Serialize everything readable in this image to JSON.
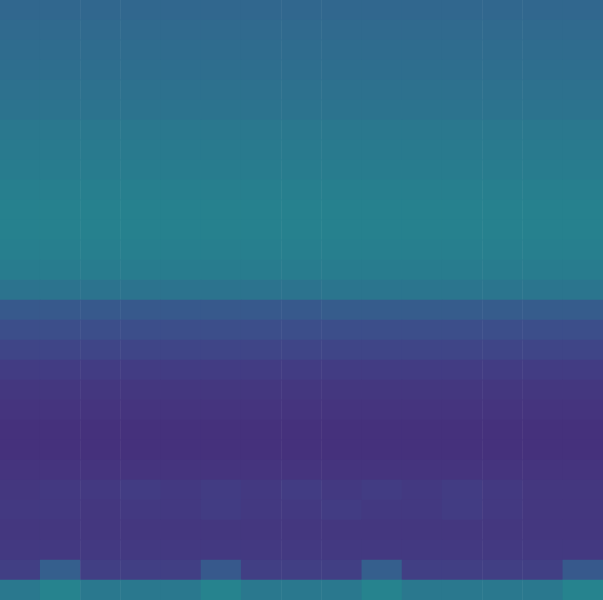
{
  "chart_data": {
    "type": "heatmap",
    "color": "viridis",
    "tick_labels": false,
    "color_range": [
      0,
      1
    ],
    "cells": [
      [
        0.33,
        0.33,
        0.33,
        0.33,
        0.33,
        0.33,
        0.33,
        0.33,
        0.33,
        0.33,
        0.33,
        0.33,
        0.33,
        0.33,
        0.33
      ],
      [
        0.34,
        0.34,
        0.34,
        0.34,
        0.34,
        0.34,
        0.34,
        0.34,
        0.34,
        0.34,
        0.34,
        0.34,
        0.34,
        0.34,
        0.34
      ],
      [
        0.35,
        0.35,
        0.35,
        0.35,
        0.35,
        0.35,
        0.35,
        0.35,
        0.35,
        0.35,
        0.35,
        0.35,
        0.35,
        0.35,
        0.35
      ],
      [
        0.36,
        0.36,
        0.36,
        0.36,
        0.36,
        0.36,
        0.36,
        0.36,
        0.36,
        0.36,
        0.36,
        0.36,
        0.36,
        0.36,
        0.36
      ],
      [
        0.37,
        0.37,
        0.37,
        0.37,
        0.37,
        0.37,
        0.37,
        0.37,
        0.37,
        0.37,
        0.37,
        0.37,
        0.37,
        0.37,
        0.37
      ],
      [
        0.38,
        0.38,
        0.38,
        0.38,
        0.38,
        0.38,
        0.38,
        0.38,
        0.38,
        0.38,
        0.38,
        0.38,
        0.38,
        0.38,
        0.38
      ],
      [
        0.4,
        0.4,
        0.4,
        0.4,
        0.4,
        0.4,
        0.4,
        0.4,
        0.4,
        0.4,
        0.4,
        0.4,
        0.4,
        0.4,
        0.4
      ],
      [
        0.41,
        0.41,
        0.41,
        0.41,
        0.41,
        0.41,
        0.41,
        0.41,
        0.41,
        0.41,
        0.41,
        0.41,
        0.41,
        0.41,
        0.41
      ],
      [
        0.42,
        0.42,
        0.42,
        0.42,
        0.42,
        0.42,
        0.42,
        0.42,
        0.42,
        0.42,
        0.42,
        0.42,
        0.42,
        0.42,
        0.42
      ],
      [
        0.43,
        0.43,
        0.43,
        0.43,
        0.43,
        0.43,
        0.43,
        0.43,
        0.43,
        0.43,
        0.43,
        0.43,
        0.43,
        0.43,
        0.43
      ],
      [
        0.44,
        0.44,
        0.44,
        0.44,
        0.44,
        0.44,
        0.44,
        0.44,
        0.44,
        0.44,
        0.44,
        0.44,
        0.44,
        0.44,
        0.44
      ],
      [
        0.44,
        0.44,
        0.44,
        0.44,
        0.44,
        0.44,
        0.44,
        0.44,
        0.44,
        0.44,
        0.44,
        0.44,
        0.44,
        0.44,
        0.44
      ],
      [
        0.43,
        0.43,
        0.43,
        0.43,
        0.43,
        0.43,
        0.43,
        0.43,
        0.43,
        0.43,
        0.43,
        0.43,
        0.43,
        0.43,
        0.43
      ],
      [
        0.42,
        0.42,
        0.42,
        0.42,
        0.42,
        0.42,
        0.42,
        0.42,
        0.42,
        0.42,
        0.42,
        0.42,
        0.42,
        0.42,
        0.42
      ],
      [
        0.38,
        0.38,
        0.38,
        0.38,
        0.38,
        0.38,
        0.38,
        0.38,
        0.39,
        0.39,
        0.39,
        0.39,
        0.39,
        0.39,
        0.39
      ],
      [
        0.28,
        0.28,
        0.28,
        0.28,
        0.28,
        0.28,
        0.28,
        0.28,
        0.29,
        0.29,
        0.29,
        0.29,
        0.29,
        0.29,
        0.29
      ],
      [
        0.24,
        0.24,
        0.24,
        0.24,
        0.24,
        0.24,
        0.24,
        0.24,
        0.24,
        0.24,
        0.24,
        0.24,
        0.24,
        0.24,
        0.24
      ],
      [
        0.21,
        0.21,
        0.21,
        0.21,
        0.21,
        0.21,
        0.21,
        0.21,
        0.21,
        0.21,
        0.21,
        0.21,
        0.21,
        0.21,
        0.21
      ],
      [
        0.18,
        0.18,
        0.18,
        0.18,
        0.18,
        0.18,
        0.18,
        0.18,
        0.18,
        0.18,
        0.18,
        0.18,
        0.18,
        0.18,
        0.18
      ],
      [
        0.16,
        0.16,
        0.16,
        0.16,
        0.16,
        0.16,
        0.16,
        0.16,
        0.16,
        0.16,
        0.16,
        0.16,
        0.16,
        0.16,
        0.16
      ],
      [
        0.15,
        0.15,
        0.15,
        0.15,
        0.15,
        0.15,
        0.15,
        0.15,
        0.15,
        0.15,
        0.15,
        0.15,
        0.15,
        0.15,
        0.15
      ],
      [
        0.14,
        0.14,
        0.14,
        0.14,
        0.14,
        0.14,
        0.14,
        0.14,
        0.14,
        0.14,
        0.14,
        0.14,
        0.14,
        0.14,
        0.14
      ],
      [
        0.14,
        0.14,
        0.14,
        0.14,
        0.14,
        0.14,
        0.14,
        0.14,
        0.14,
        0.14,
        0.14,
        0.14,
        0.14,
        0.14,
        0.14
      ],
      [
        0.15,
        0.15,
        0.15,
        0.15,
        0.15,
        0.15,
        0.15,
        0.15,
        0.15,
        0.15,
        0.15,
        0.15,
        0.15,
        0.15,
        0.15
      ],
      [
        0.16,
        0.17,
        0.17,
        0.18,
        0.17,
        0.18,
        0.17,
        0.18,
        0.17,
        0.18,
        0.17,
        0.18,
        0.17,
        0.16,
        0.16
      ],
      [
        0.17,
        0.17,
        0.16,
        0.17,
        0.17,
        0.18,
        0.17,
        0.17,
        0.18,
        0.17,
        0.17,
        0.18,
        0.17,
        0.16,
        0.16
      ],
      [
        0.16,
        0.16,
        0.16,
        0.16,
        0.16,
        0.16,
        0.16,
        0.16,
        0.16,
        0.16,
        0.16,
        0.16,
        0.16,
        0.16,
        0.16
      ],
      [
        0.17,
        0.17,
        0.17,
        0.17,
        0.17,
        0.17,
        0.17,
        0.17,
        0.17,
        0.17,
        0.17,
        0.17,
        0.17,
        0.17,
        0.17
      ],
      [
        0.19,
        0.3,
        0.19,
        0.19,
        0.19,
        0.28,
        0.19,
        0.19,
        0.19,
        0.3,
        0.19,
        0.19,
        0.19,
        0.19,
        0.28
      ],
      [
        0.4,
        0.45,
        0.4,
        0.4,
        0.4,
        0.45,
        0.4,
        0.4,
        0.4,
        0.45,
        0.4,
        0.4,
        0.4,
        0.4,
        0.45
      ]
    ]
  }
}
